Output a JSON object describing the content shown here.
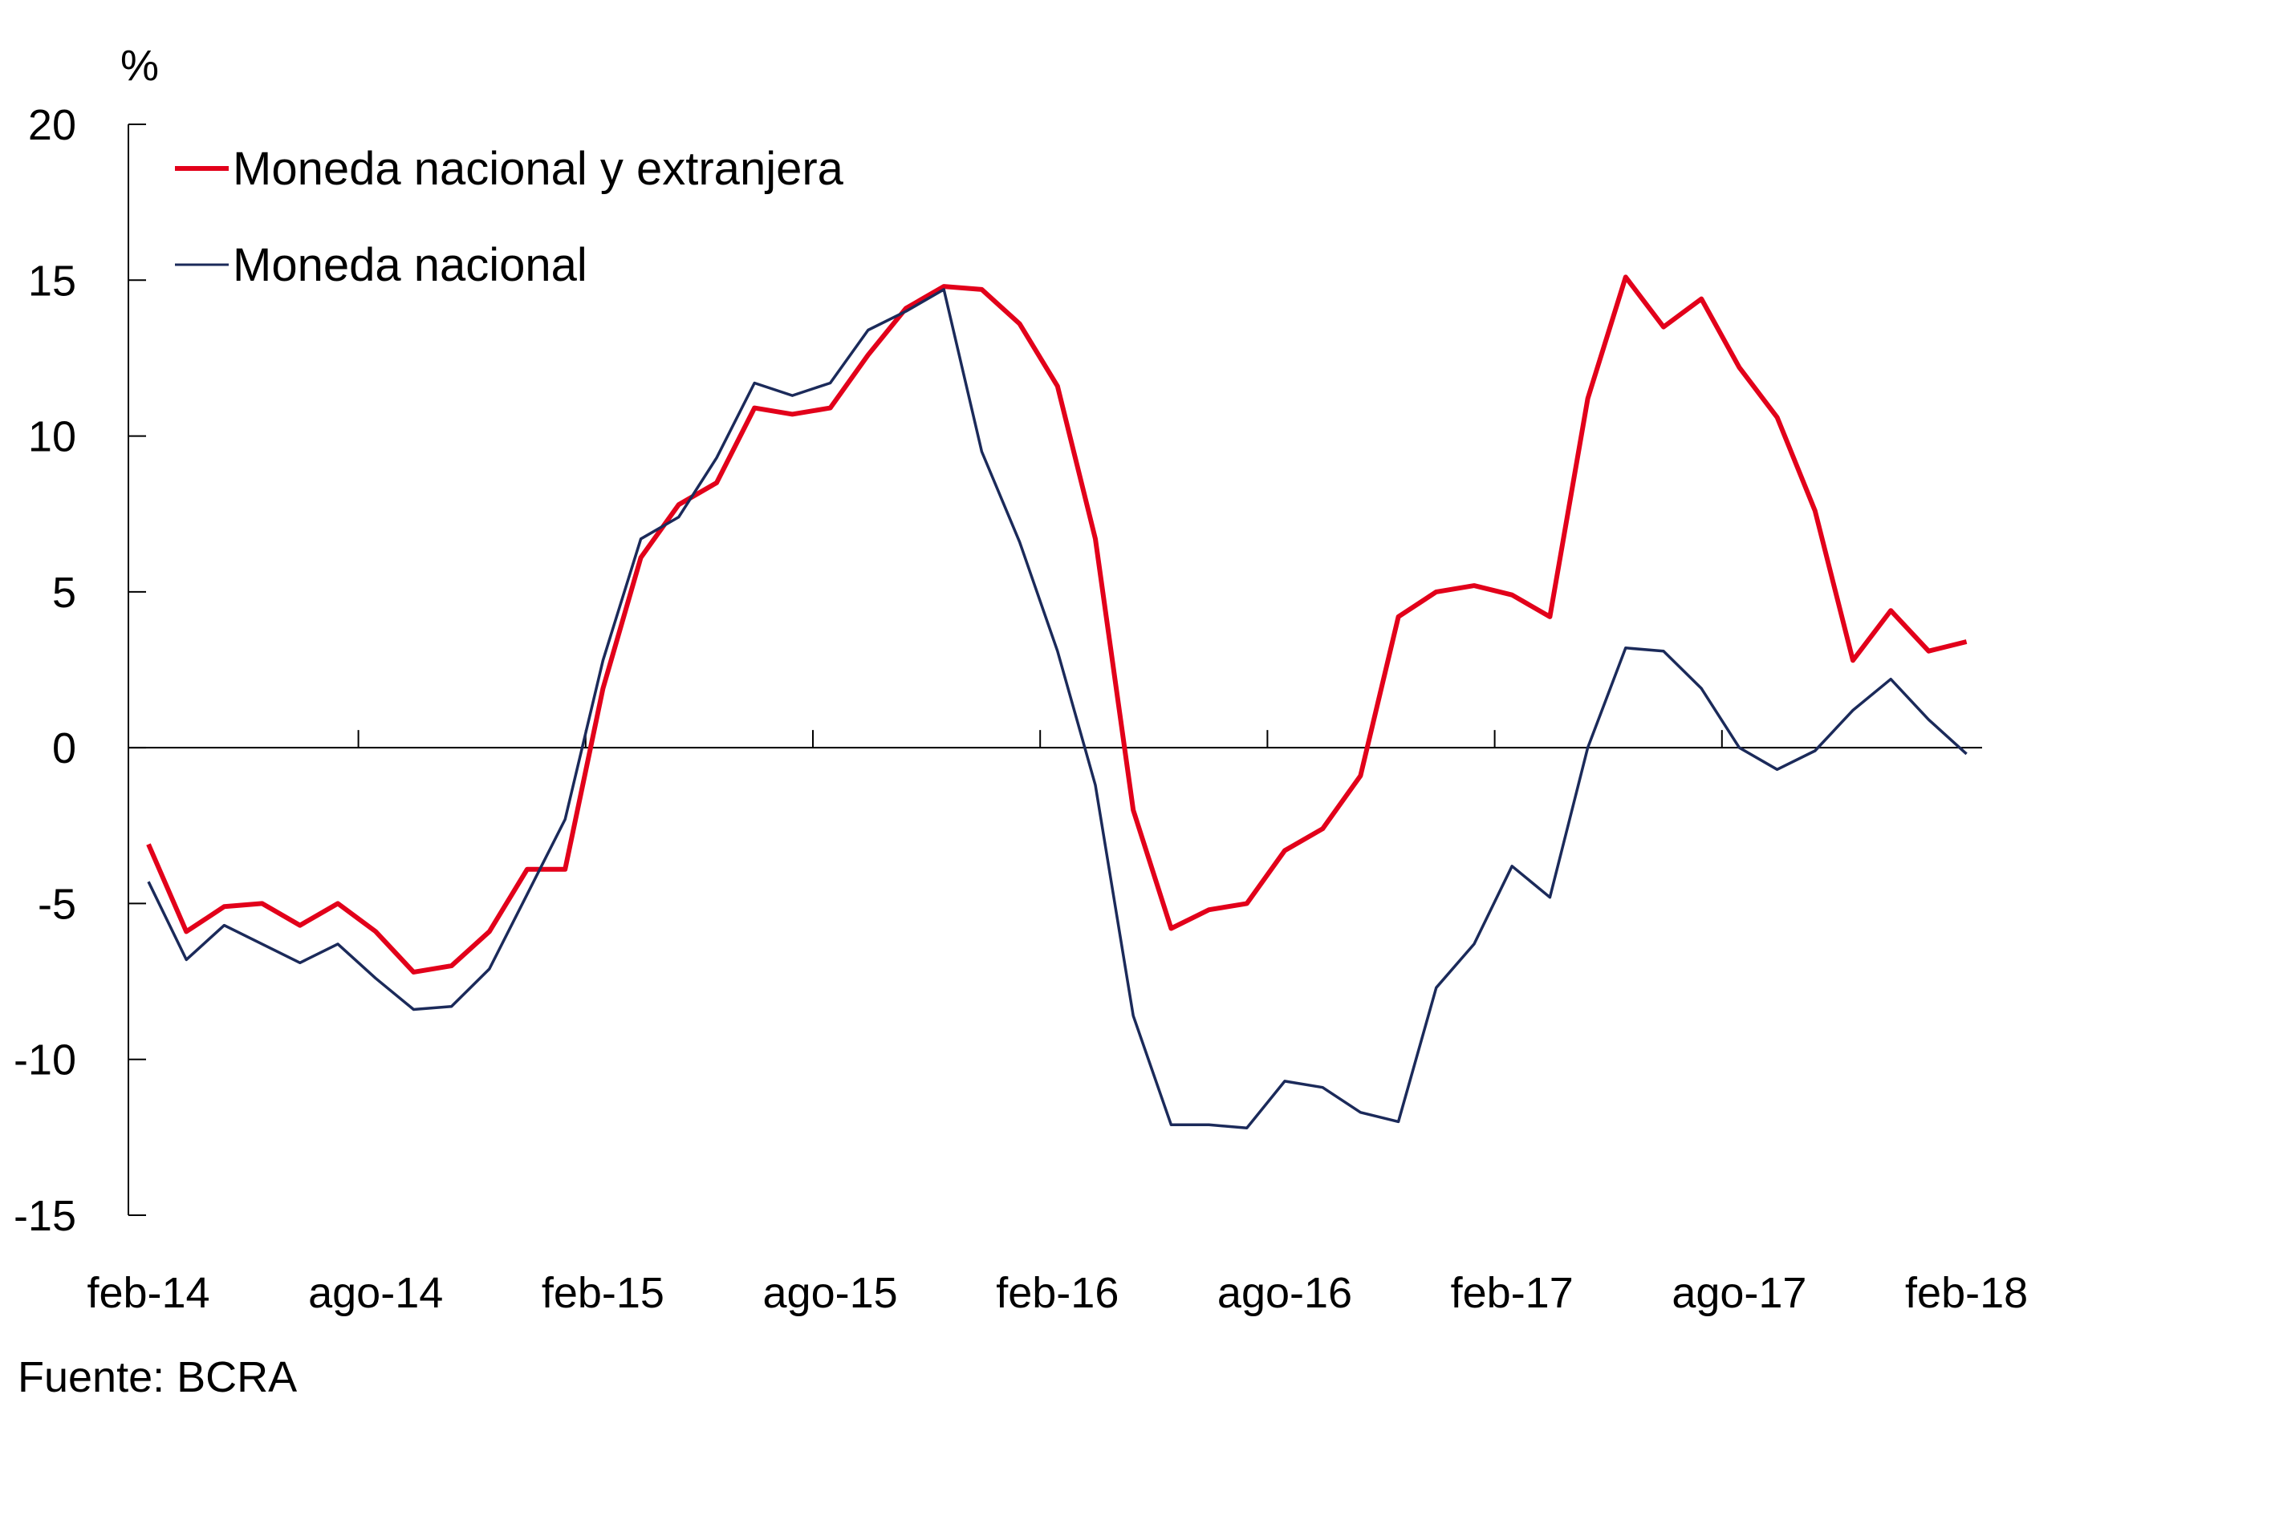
{
  "chart_data": {
    "type": "line",
    "ylabel": "%",
    "source": "Fuente: BCRA",
    "ylim": [
      -15,
      20
    ],
    "yticks": [
      20,
      15,
      10,
      5,
      0,
      -5,
      -10,
      -15
    ],
    "xtick_labels": [
      "feb-14",
      "ago-14",
      "feb-15",
      "ago-15",
      "feb-16",
      "ago-16",
      "feb-17",
      "ago-17",
      "feb-18"
    ],
    "x": [
      "feb-14",
      "mar-14",
      "abr-14",
      "may-14",
      "jun-14",
      "jul-14",
      "ago-14",
      "sep-14",
      "oct-14",
      "nov-14",
      "dic-14",
      "ene-15",
      "feb-15",
      "mar-15",
      "abr-15",
      "may-15",
      "jun-15",
      "jul-15",
      "ago-15",
      "sep-15",
      "oct-15",
      "nov-15",
      "dic-15",
      "ene-16",
      "feb-16",
      "mar-16",
      "abr-16",
      "may-16",
      "jun-16",
      "jul-16",
      "ago-16",
      "sep-16",
      "oct-16",
      "nov-16",
      "dic-16",
      "ene-17",
      "feb-17",
      "mar-17",
      "abr-17",
      "may-17",
      "jun-17",
      "jul-17",
      "ago-17",
      "sep-17",
      "oct-17",
      "nov-17",
      "dic-17",
      "ene-18",
      "feb-18"
    ],
    "series": [
      {
        "name": "Moneda nacional y extranjera",
        "color": "#e2001a",
        "values": [
          -3.1,
          -5.9,
          -5.1,
          -5.0,
          -5.7,
          -5.0,
          -5.9,
          -7.2,
          -7.0,
          -5.9,
          -3.9,
          -3.9,
          1.9,
          6.1,
          7.8,
          8.5,
          10.9,
          10.7,
          10.9,
          12.6,
          14.1,
          14.8,
          14.7,
          13.6,
          11.6,
          6.7,
          -2.0,
          -5.8,
          -5.2,
          -5.0,
          -3.3,
          -2.6,
          -0.9,
          4.2,
          5.0,
          5.2,
          4.9,
          4.2,
          11.2,
          15.1,
          13.5,
          14.4,
          12.2,
          10.6,
          7.6,
          2.8,
          4.4,
          3.1,
          3.4
        ]
      },
      {
        "name": "Moneda nacional",
        "color": "#1b2a5a",
        "values": [
          -4.3,
          -6.8,
          -5.7,
          -6.3,
          -6.9,
          -6.3,
          -7.4,
          -8.4,
          -8.3,
          -7.1,
          -4.7,
          -2.3,
          2.8,
          6.7,
          7.4,
          9.3,
          11.7,
          11.3,
          11.7,
          13.4,
          14.0,
          14.7,
          9.5,
          6.6,
          3.1,
          -1.2,
          -8.6,
          -12.1,
          -12.1,
          -12.2,
          -10.7,
          -10.9,
          -11.7,
          -12.0,
          -7.7,
          -6.3,
          -3.8,
          -4.8,
          0.0,
          3.2,
          3.1,
          1.9,
          0.0,
          -0.7,
          -0.1,
          1.2,
          2.2,
          0.9,
          -0.2
        ]
      }
    ]
  }
}
